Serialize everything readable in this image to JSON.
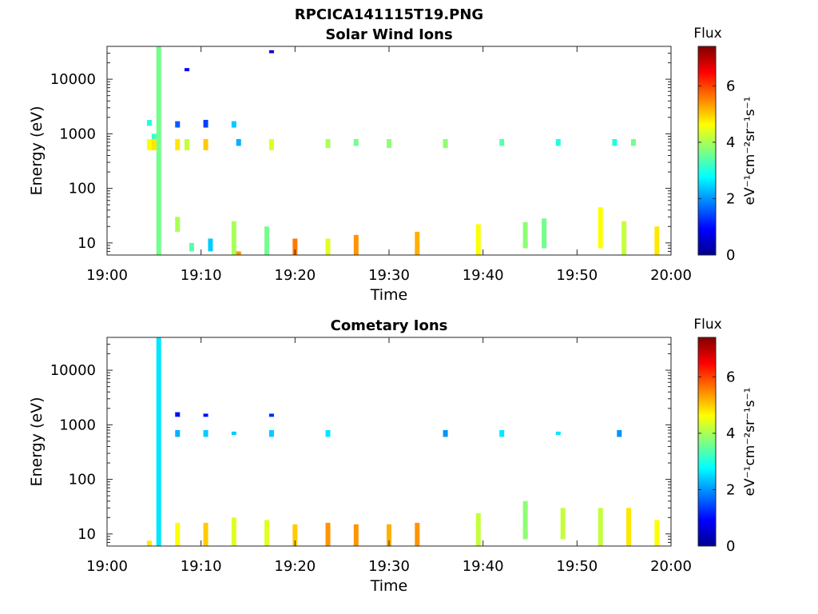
{
  "figure_title": "RPCICA141115T19.PNG",
  "chart_data": [
    {
      "type": "heatmap",
      "title": "Solar Wind Ions",
      "xlabel": "Time",
      "ylabel": "Energy (eV)",
      "x_range": [
        "19:00",
        "20:00"
      ],
      "x_ticks": [
        "19:00",
        "19:10",
        "19:20",
        "19:30",
        "19:40",
        "19:50",
        "20:00"
      ],
      "y_scale": "log",
      "y_range": [
        6,
        40000
      ],
      "y_ticks": [
        "10",
        "100",
        "1000",
        "10000"
      ],
      "colorbar": {
        "label": "Flux",
        "units": "eV⁻¹cm⁻²sr⁻¹s⁻¹",
        "range": [
          0,
          7.4
        ],
        "ticks": [
          "0",
          "2",
          "4",
          "6"
        ],
        "colormap": "jet"
      },
      "grid": false,
      "cells": [
        {
          "t": "19:05:30",
          "e": [
            6,
            40000
          ],
          "v": 3.6
        },
        {
          "t": "19:04:30",
          "e": [
            500,
            800
          ],
          "v": 4.6
        },
        {
          "t": "19:04:30",
          "e": [
            1400,
            1800
          ],
          "v": 3.0
        },
        {
          "t": "19:05:00",
          "e": [
            500,
            800
          ],
          "v": 4.8
        },
        {
          "t": "19:05:00",
          "e": [
            800,
            1000
          ],
          "v": 3.2
        },
        {
          "t": "19:07:30",
          "e": [
            500,
            800
          ],
          "v": 4.8
        },
        {
          "t": "19:07:30",
          "e": [
            1300,
            1700
          ],
          "v": 1.6
        },
        {
          "t": "19:08:30",
          "e": [
            500,
            800
          ],
          "v": 4.2
        },
        {
          "t": "19:08:30",
          "e": [
            14000,
            16000
          ],
          "v": 0.9
        },
        {
          "t": "19:10:30",
          "e": [
            500,
            800
          ],
          "v": 5.0
        },
        {
          "t": "19:10:30",
          "e": [
            1300,
            1800
          ],
          "v": 1.4
        },
        {
          "t": "19:13:30",
          "e": [
            1300,
            1700
          ],
          "v": 2.4
        },
        {
          "t": "19:14:00",
          "e": [
            600,
            800
          ],
          "v": 2.2
        },
        {
          "t": "19:17:30",
          "e": [
            500,
            800
          ],
          "v": 4.4
        },
        {
          "t": "19:17:30",
          "e": [
            30000,
            34000
          ],
          "v": 0.6
        },
        {
          "t": "19:23:30",
          "e": [
            550,
            800
          ],
          "v": 4.0
        },
        {
          "t": "19:26:30",
          "e": [
            600,
            800
          ],
          "v": 3.6
        },
        {
          "t": "19:30:00",
          "e": [
            550,
            800
          ],
          "v": 3.8
        },
        {
          "t": "19:36:00",
          "e": [
            550,
            800
          ],
          "v": 3.8
        },
        {
          "t": "19:42:00",
          "e": [
            600,
            800
          ],
          "v": 3.4
        },
        {
          "t": "19:48:00",
          "e": [
            600,
            800
          ],
          "v": 3.0
        },
        {
          "t": "19:54:00",
          "e": [
            600,
            800
          ],
          "v": 3.0
        },
        {
          "t": "19:56:00",
          "e": [
            600,
            800
          ],
          "v": 3.6
        },
        {
          "t": "19:07:30",
          "e": [
            16,
            30
          ],
          "v": 4.0
        },
        {
          "t": "19:09:00",
          "e": [
            7,
            10
          ],
          "v": 3.4
        },
        {
          "t": "19:11:00",
          "e": [
            7,
            12
          ],
          "v": 2.4
        },
        {
          "t": "19:13:30",
          "e": [
            6,
            25
          ],
          "v": 4.0
        },
        {
          "t": "19:14:00",
          "e": [
            6,
            7
          ],
          "v": 5.4
        },
        {
          "t": "19:17:00",
          "e": [
            6,
            20
          ],
          "v": 3.6
        },
        {
          "t": "19:20:00",
          "e": [
            6,
            12
          ],
          "v": 5.6
        },
        {
          "t": "19:23:30",
          "e": [
            6,
            12
          ],
          "v": 4.4
        },
        {
          "t": "19:26:30",
          "e": [
            6,
            14
          ],
          "v": 5.4
        },
        {
          "t": "19:33:00",
          "e": [
            6,
            16
          ],
          "v": 5.2
        },
        {
          "t": "19:39:30",
          "e": [
            6,
            22
          ],
          "v": 4.6
        },
        {
          "t": "19:44:30",
          "e": [
            8,
            24
          ],
          "v": 3.8
        },
        {
          "t": "19:46:30",
          "e": [
            8,
            28
          ],
          "v": 3.6
        },
        {
          "t": "19:52:30",
          "e": [
            8,
            45
          ],
          "v": 4.6
        },
        {
          "t": "19:55:00",
          "e": [
            6,
            25
          ],
          "v": 4.2
        },
        {
          "t": "19:58:30",
          "e": [
            6,
            20
          ],
          "v": 4.8
        }
      ]
    },
    {
      "type": "heatmap",
      "title": "Cometary Ions",
      "xlabel": "Time",
      "ylabel": "Energy (eV)",
      "x_range": [
        "19:00",
        "20:00"
      ],
      "x_ticks": [
        "19:00",
        "19:10",
        "19:20",
        "19:30",
        "19:40",
        "19:50",
        "20:00"
      ],
      "y_scale": "log",
      "y_range": [
        6,
        40000
      ],
      "y_ticks": [
        "10",
        "100",
        "1000",
        "10000"
      ],
      "colorbar": {
        "label": "Flux",
        "units": "eV⁻¹cm⁻²sr⁻¹s⁻¹",
        "range": [
          0,
          7.4
        ],
        "ticks": [
          "0",
          "2",
          "4",
          "6"
        ],
        "colormap": "jet"
      },
      "grid": false,
      "cells": [
        {
          "t": "19:05:30",
          "e": [
            6,
            40000
          ],
          "v": 2.6
        },
        {
          "t": "19:04:30",
          "e": [
            6,
            7.5
          ],
          "v": 4.8
        },
        {
          "t": "19:07:30",
          "e": [
            600,
            800
          ],
          "v": 2.2
        },
        {
          "t": "19:07:30",
          "e": [
            1400,
            1700
          ],
          "v": 1.0
        },
        {
          "t": "19:10:30",
          "e": [
            600,
            800
          ],
          "v": 2.4
        },
        {
          "t": "19:10:30",
          "e": [
            1400,
            1600
          ],
          "v": 1.0
        },
        {
          "t": "19:13:30",
          "e": [
            650,
            750
          ],
          "v": 2.4
        },
        {
          "t": "19:17:30",
          "e": [
            600,
            800
          ],
          "v": 2.4
        },
        {
          "t": "19:17:30",
          "e": [
            1400,
            1600
          ],
          "v": 1.2
        },
        {
          "t": "19:23:30",
          "e": [
            600,
            800
          ],
          "v": 2.6
        },
        {
          "t": "19:36:00",
          "e": [
            600,
            800
          ],
          "v": 2.0
        },
        {
          "t": "19:42:00",
          "e": [
            600,
            800
          ],
          "v": 2.6
        },
        {
          "t": "19:48:00",
          "e": [
            650,
            750
          ],
          "v": 2.6
        },
        {
          "t": "19:54:30",
          "e": [
            600,
            800
          ],
          "v": 2.0
        },
        {
          "t": "19:07:30",
          "e": [
            6,
            16
          ],
          "v": 4.6
        },
        {
          "t": "19:10:30",
          "e": [
            6,
            16
          ],
          "v": 5.0
        },
        {
          "t": "19:13:30",
          "e": [
            6,
            20
          ],
          "v": 4.4
        },
        {
          "t": "19:17:00",
          "e": [
            6,
            18
          ],
          "v": 4.4
        },
        {
          "t": "19:20:00",
          "e": [
            6,
            15
          ],
          "v": 5.0
        },
        {
          "t": "19:23:30",
          "e": [
            6,
            16
          ],
          "v": 5.4
        },
        {
          "t": "19:26:30",
          "e": [
            6,
            15
          ],
          "v": 5.4
        },
        {
          "t": "19:30:00",
          "e": [
            6,
            15
          ],
          "v": 5.2
        },
        {
          "t": "19:33:00",
          "e": [
            6,
            16
          ],
          "v": 5.4
        },
        {
          "t": "19:39:30",
          "e": [
            6,
            24
          ],
          "v": 4.2
        },
        {
          "t": "19:44:30",
          "e": [
            8,
            40
          ],
          "v": 3.8
        },
        {
          "t": "19:48:30",
          "e": [
            8,
            30
          ],
          "v": 4.2
        },
        {
          "t": "19:52:30",
          "e": [
            6,
            30
          ],
          "v": 4.2
        },
        {
          "t": "19:55:30",
          "e": [
            6,
            30
          ],
          "v": 4.8
        },
        {
          "t": "19:58:30",
          "e": [
            6,
            18
          ],
          "v": 4.6
        }
      ]
    }
  ]
}
